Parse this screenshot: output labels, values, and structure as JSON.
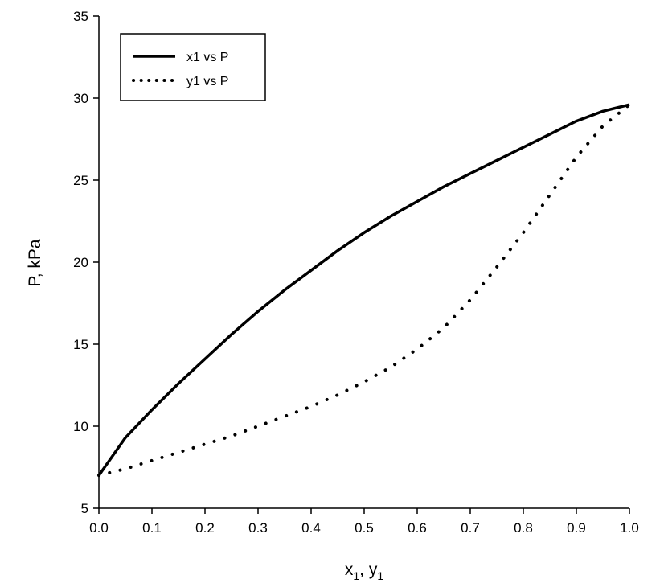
{
  "chart_data": {
    "type": "line",
    "title": "",
    "xlabel": "x1, y1",
    "xlabel_parts": {
      "x_main": "x",
      "x_sub": "1",
      "sep": ", ",
      "y_main": "y",
      "y_sub": "1"
    },
    "ylabel": "P, kPa",
    "xlim": [
      0.0,
      1.0
    ],
    "ylim": [
      5,
      35
    ],
    "x_ticks": [
      "0.0",
      "0.1",
      "0.2",
      "0.3",
      "0.4",
      "0.5",
      "0.6",
      "0.7",
      "0.8",
      "0.9",
      "1.0"
    ],
    "y_ticks": [
      "5",
      "10",
      "15",
      "20",
      "25",
      "30",
      "35"
    ],
    "grid": false,
    "legend_position": "top-left",
    "series": [
      {
        "name": "x1 vs P",
        "style": "solid",
        "color": "#000000",
        "x": [
          0.0,
          0.05,
          0.1,
          0.15,
          0.2,
          0.25,
          0.3,
          0.35,
          0.4,
          0.45,
          0.5,
          0.55,
          0.6,
          0.65,
          0.7,
          0.75,
          0.8,
          0.85,
          0.9,
          0.95,
          1.0
        ],
        "y": [
          7.0,
          9.3,
          11.0,
          12.6,
          14.1,
          15.6,
          17.0,
          18.3,
          19.5,
          20.7,
          21.8,
          22.8,
          23.7,
          24.6,
          25.4,
          26.2,
          27.0,
          27.8,
          28.6,
          29.2,
          29.6
        ]
      },
      {
        "name": "y1 vs P",
        "style": "dotted",
        "color": "#000000",
        "x": [
          0.0,
          0.05,
          0.1,
          0.15,
          0.2,
          0.25,
          0.3,
          0.35,
          0.4,
          0.45,
          0.5,
          0.55,
          0.6,
          0.65,
          0.7,
          0.75,
          0.8,
          0.85,
          0.9,
          0.95,
          1.0
        ],
        "y": [
          7.0,
          7.4,
          7.9,
          8.4,
          8.9,
          9.4,
          10.0,
          10.6,
          11.2,
          11.9,
          12.7,
          13.6,
          14.7,
          16.0,
          17.7,
          19.7,
          21.8,
          24.1,
          26.4,
          28.3,
          29.6
        ]
      }
    ]
  }
}
